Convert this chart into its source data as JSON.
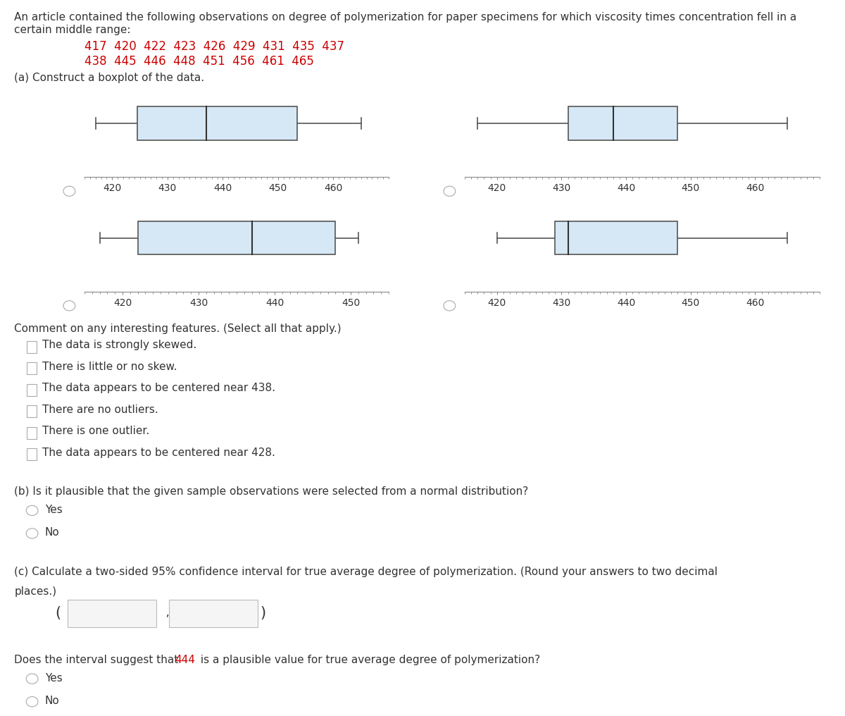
{
  "data": [
    417,
    420,
    422,
    423,
    426,
    429,
    431,
    435,
    437,
    438,
    445,
    446,
    448,
    451,
    456,
    461,
    465
  ],
  "data_display": "417  420  422  423  426  429  431  435  437",
  "data_display2": "438  445  446  448  451  456  461  465",
  "box_fill_color": "#d6e8f5",
  "box_edge_color": "#555555",
  "whisker_color": "#555555",
  "median_color": "#333333",
  "axis_color": "#888888",
  "boxplot1": {
    "xlim": [
      415,
      470
    ],
    "xticks": [
      420,
      430,
      440,
      450,
      460
    ],
    "q1": 424.5,
    "median": 437,
    "q3": 453.5,
    "whisker_low": 417,
    "whisker_high": 465
  },
  "boxplot2": {
    "xlim": [
      415,
      470
    ],
    "xticks": [
      420,
      430,
      440,
      450,
      460
    ],
    "q1": 431,
    "median": 438,
    "q3": 448,
    "whisker_low": 417,
    "whisker_high": 465
  },
  "boxplot3": {
    "xlim": [
      415,
      455
    ],
    "xticks": [
      420,
      430,
      440,
      450
    ],
    "q1": 422,
    "median": 437,
    "q3": 448,
    "whisker_low": 417,
    "whisker_high": 451
  },
  "boxplot4": {
    "xlim": [
      415,
      470
    ],
    "xticks": [
      420,
      430,
      440,
      450,
      460
    ],
    "q1": 429,
    "median": 431,
    "q3": 448,
    "whisker_low": 420,
    "whisker_high": 465
  },
  "background_color": "#ffffff",
  "text_color": "#333333",
  "red_color": "#cc0000",
  "font_size": 11,
  "comment_options": [
    "The data is strongly skewed.",
    "There is little or no skew.",
    "The data appears to be centered near 438.",
    "There are no outliers.",
    "There is one outlier.",
    "The data appears to be centered near 428."
  ]
}
